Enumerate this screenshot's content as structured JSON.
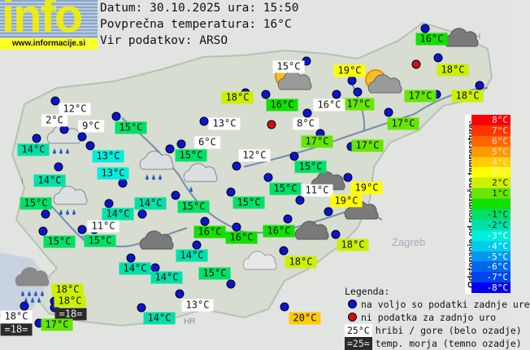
{
  "header": {
    "logo_text": "info",
    "logo_url": "www.informacije.si",
    "date_line": "Datum: 30.10.2025 ura: 15:50",
    "avg_line": "Povprečna temperatura: 16°C",
    "source_line": "Vir podatkov: ARSO"
  },
  "average_temperature": 16,
  "stations": [
    {
      "label": "16°C",
      "type": "normal",
      "value": 16
    },
    {
      "label": "18°C",
      "type": "normal",
      "value": 18
    },
    {
      "label": "18°C",
      "type": "normal",
      "value": 18
    },
    {
      "label": "17°C",
      "type": "normal",
      "value": 17
    },
    {
      "label": "19°C",
      "type": "normal",
      "value": 19
    },
    {
      "label": "17°C",
      "type": "normal",
      "value": 17
    },
    {
      "label": "16°C",
      "type": "mountain",
      "value": 16
    },
    {
      "label": "17°C",
      "type": "normal",
      "value": 17
    },
    {
      "label": "15°C",
      "type": "mountain",
      "value": 15
    },
    {
      "label": "18°C",
      "type": "normal",
      "value": 18
    },
    {
      "label": "16°C",
      "type": "normal",
      "value": 16
    },
    {
      "label": "8°C",
      "type": "mountain",
      "value": 8
    },
    {
      "label": "13°C",
      "type": "mountain",
      "value": 13
    },
    {
      "label": "17°C",
      "type": "normal",
      "value": 17
    },
    {
      "label": "17°C",
      "type": "normal",
      "value": 17
    },
    {
      "label": "12°C",
      "type": "mountain",
      "value": 12
    },
    {
      "label": "2°C",
      "type": "mountain",
      "value": 2
    },
    {
      "label": "9°C",
      "type": "mountain",
      "value": 9
    },
    {
      "label": "14°C",
      "type": "normal",
      "value": 14
    },
    {
      "label": "13°C",
      "type": "normal",
      "value": 13
    },
    {
      "label": "15°C",
      "type": "normal",
      "value": 15
    },
    {
      "label": "14°C",
      "type": "normal",
      "value": 14
    },
    {
      "label": "13°C",
      "type": "normal",
      "value": 13
    },
    {
      "label": "15°C",
      "type": "normal",
      "value": 15
    },
    {
      "label": "14°C",
      "type": "normal",
      "value": 14
    },
    {
      "label": "14°C",
      "type": "normal",
      "value": 14
    },
    {
      "label": "11°C",
      "type": "mountain",
      "value": 11
    },
    {
      "label": "15°C",
      "type": "normal",
      "value": 15
    },
    {
      "label": "15°C",
      "type": "normal",
      "value": 15
    },
    {
      "label": "6°C",
      "type": "mountain",
      "value": 6
    },
    {
      "label": "15°C",
      "type": "normal",
      "value": 15
    },
    {
      "label": "12°C",
      "type": "mountain",
      "value": 12
    },
    {
      "label": "15°C",
      "type": "normal",
      "value": 15
    },
    {
      "label": "15°C",
      "type": "normal",
      "value": 15
    },
    {
      "label": "11°C",
      "type": "mountain",
      "value": 11
    },
    {
      "label": "19°C",
      "type": "normal",
      "value": 19
    },
    {
      "label": "19°C",
      "type": "normal",
      "value": 19
    },
    {
      "label": "15°C",
      "type": "normal",
      "value": 15
    },
    {
      "label": "15°C",
      "type": "normal",
      "value": 15
    },
    {
      "label": "16°C",
      "type": "normal",
      "value": 16
    },
    {
      "label": "16°C",
      "type": "normal",
      "value": 16
    },
    {
      "label": "16°C",
      "type": "normal",
      "value": 16
    },
    {
      "label": "18°C",
      "type": "normal",
      "value": 18
    },
    {
      "label": "18°C",
      "type": "normal",
      "value": 18
    },
    {
      "label": "14°C",
      "type": "normal",
      "value": 14
    },
    {
      "label": "14°C",
      "type": "normal",
      "value": 14
    },
    {
      "label": "14°C",
      "type": "normal",
      "value": 14
    },
    {
      "label": "15°C",
      "type": "normal",
      "value": 15
    },
    {
      "label": "14°C",
      "type": "normal",
      "value": 14
    },
    {
      "label": "13°C",
      "type": "mountain",
      "value": 13
    },
    {
      "label": "18°C",
      "type": "normal",
      "value": 18
    },
    {
      "label": "18°C",
      "type": "normal",
      "value": 18
    },
    {
      "label": "=18=",
      "type": "sea",
      "value": 18
    },
    {
      "label": "18°C",
      "type": "mountain",
      "value": 18
    },
    {
      "label": "=18=",
      "type": "sea",
      "value": 18
    },
    {
      "label": "17°C",
      "type": "normal",
      "value": 17
    },
    {
      "label": "20°C",
      "type": "normal",
      "value": 20
    }
  ],
  "no_data_stations": 2,
  "weather_icons": [
    "sun-cloud",
    "sun-cloud",
    "dark-cloud",
    "dark-cloud",
    "dark-cloud",
    "dark-cloud",
    "dark-cloud",
    "rain-cloud",
    "rain-cloud",
    "rain-cloud",
    "light-rain-cloud",
    "heavy-rain-cloud",
    "light-cloud"
  ],
  "scale": {
    "title": "Odstopanje od povprečne temperature:",
    "cells": [
      {
        "label": "8°C",
        "color": "#ff0000"
      },
      {
        "label": "7°C",
        "color": "#ff3300"
      },
      {
        "label": "6°C",
        "color": "#ff6600"
      },
      {
        "label": "5°C",
        "color": "#ff9900"
      },
      {
        "label": "4°C",
        "color": "#ffcc00"
      },
      {
        "label": "3°C",
        "color": "#ffff00"
      },
      {
        "label": "2°C",
        "color": "#ccf000"
      },
      {
        "label": "1°C",
        "color": "#66e600"
      },
      {
        "label": "",
        "color": "#11e000"
      },
      {
        "label": "-1°C",
        "color": "#00e066"
      },
      {
        "label": "-2°C",
        "color": "#00e0a8"
      },
      {
        "label": "-3°C",
        "color": "#00eedd"
      },
      {
        "label": "-4°C",
        "color": "#00ccee"
      },
      {
        "label": "-5°C",
        "color": "#0099ee"
      },
      {
        "label": "-6°C",
        "color": "#0066ee"
      },
      {
        "label": "-7°C",
        "color": "#0044ee"
      },
      {
        "label": "-8°C",
        "color": "#0000ee"
      }
    ]
  },
  "legend": {
    "title": "Legenda:",
    "available": "na voljo so podatki zadnje ure",
    "no_data": "ni podatka za zadnjo uro",
    "mountain_sample": "25°C",
    "mountain_text": "hribi / gore (belo ozadje)",
    "sea_sample": "=25=",
    "sea_text": "temp. morja (temno ozadje)",
    "dot_available_color": "#0a14d0",
    "dot_no_data_color": "#d01010"
  },
  "map_labels": [
    "Zagreb",
    "HR",
    "H",
    "I"
  ]
}
